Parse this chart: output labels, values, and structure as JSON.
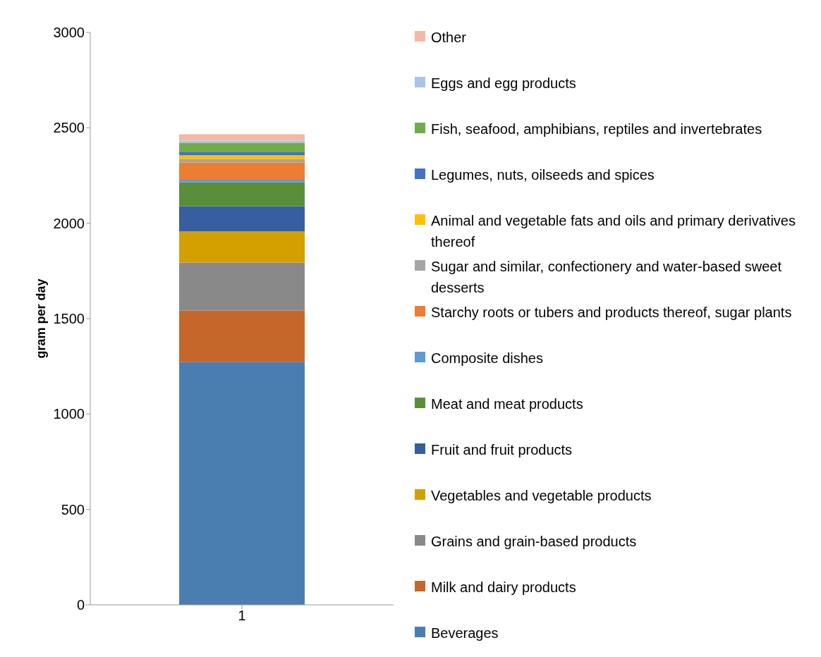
{
  "chart_data": {
    "type": "bar",
    "stacked": true,
    "ylabel": "gram per day",
    "categories": [
      "1"
    ],
    "ylim": [
      0,
      3000
    ],
    "yticks": [
      0,
      500,
      1000,
      1500,
      2000,
      2500,
      3000
    ],
    "grid": false,
    "legend": "right",
    "series": [
      {
        "name": "Beverages",
        "color": "#4a7eb0",
        "values": [
          1274
        ]
      },
      {
        "name": "Milk and dairy products",
        "color": "#c5672a",
        "values": [
          268
        ]
      },
      {
        "name": "Grains and grain-based products",
        "color": "#898989",
        "values": [
          252
        ]
      },
      {
        "name": "Vegetables and vegetable products",
        "color": "#d4a000",
        "values": [
          163
        ]
      },
      {
        "name": "Fruit and fruit products",
        "color": "#365ea0",
        "values": [
          132
        ]
      },
      {
        "name": "Meat and meat products",
        "color": "#5a8e3a",
        "values": [
          125
        ]
      },
      {
        "name": "Composite dishes",
        "color": "#5b9bd5",
        "values": [
          14
        ]
      },
      {
        "name": "Starchy roots or tubers and products thereof, sugar plants",
        "color": "#ed7d31",
        "values": [
          89
        ]
      },
      {
        "name": "Sugar and similar, confectionery and water-based sweet desserts",
        "color": "#a5a5a5",
        "values": [
          18
        ]
      },
      {
        "name": "Animal and vegetable fats and oils and primary derivatives thereof",
        "color": "#ffc000",
        "values": [
          21
        ]
      },
      {
        "name": "Legumes, nuts, oilseeds and spices",
        "color": "#4472c4",
        "values": [
          19
        ]
      },
      {
        "name": "Fish, seafood, amphibians, reptiles and invertebrates",
        "color": "#70ad47",
        "values": [
          45
        ]
      },
      {
        "name": "Eggs and egg products",
        "color": "#a9c4e6",
        "values": [
          13
        ]
      },
      {
        "name": "Other",
        "color": "#f4b8a4",
        "values": [
          33
        ]
      }
    ]
  }
}
